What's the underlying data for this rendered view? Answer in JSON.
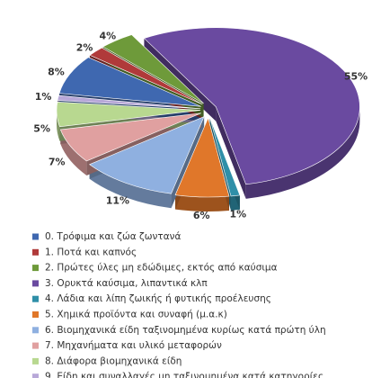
{
  "chart_data": {
    "type": "pie",
    "categories": [
      "0. Τρόφιμα και ζώα ζωντανά",
      "1. Ποτά και καπνός",
      "2. Πρώτες ύλες μη εδώδιμες, εκτός από καύσιμα",
      "3. Ορυκτά καύσιμα, λιπαντικά κλπ",
      "4. Λάδια και λίπη ζωικής ή φυτικής προέλευσης",
      "5. Χημικά προϊόντα και συναφή (μ.α.κ)",
      "6. Βιομηχανικά είδη ταξινομημένα κυρίως κατά πρώτη ύλη",
      "7. Μηχανήματα και υλικό μεταφορών",
      "8. Διάφορα βιομηχανικά είδη",
      "9. Είδη και συναλλαγές μη ταξινομημένα κατά  κατηγορίες"
    ],
    "values": [
      8,
      2,
      4,
      55,
      1,
      6,
      11,
      7,
      5,
      1
    ],
    "value_labels": [
      "8%",
      "2%",
      "4%",
      "55%",
      "1%",
      "6%",
      "11%",
      "7%",
      "5%",
      "1%"
    ],
    "colors": [
      "#3f68b0",
      "#b03a3a",
      "#6e9a3a",
      "#6a4aa0",
      "#2f8fa8",
      "#e0772a",
      "#8fb0e0",
      "#e0a0a0",
      "#b8d890",
      "#b8a8d8"
    ]
  }
}
